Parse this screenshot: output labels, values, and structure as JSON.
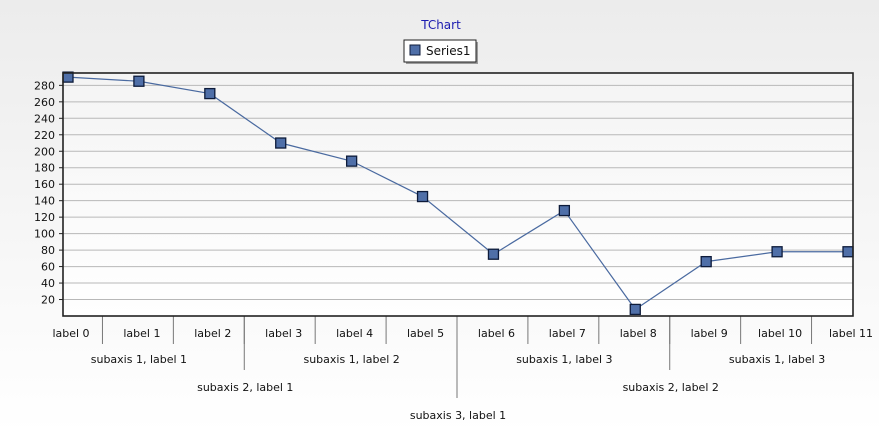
{
  "chart_data": {
    "type": "line",
    "title": "TChart",
    "categories": [
      "label 0",
      "label 1",
      "label 2",
      "label 3",
      "label 4",
      "label 5",
      "label 6",
      "label 7",
      "label 8",
      "label 9",
      "label 10",
      "label 11"
    ],
    "series": [
      {
        "name": "Series1",
        "values": [
          290,
          285,
          270,
          210,
          188,
          145,
          75,
          128,
          8,
          66,
          78,
          78
        ]
      }
    ],
    "ylim": [
      0,
      295
    ],
    "yticks": [
      20,
      40,
      60,
      80,
      100,
      120,
      140,
      160,
      180,
      200,
      220,
      240,
      260,
      280
    ],
    "subaxes": [
      {
        "level": 1,
        "groups": [
          {
            "label": "subaxis 1, label 1",
            "span": [
              0,
              2
            ]
          },
          {
            "label": "subaxis 1, label 2",
            "span": [
              3,
              5
            ]
          },
          {
            "label": "subaxis 1, label 3",
            "span": [
              6,
              8
            ]
          },
          {
            "label": "subaxis 1, label 3",
            "span": [
              9,
              11
            ]
          }
        ]
      },
      {
        "level": 2,
        "groups": [
          {
            "label": "subaxis 2, label 1",
            "span": [
              0,
              5
            ]
          },
          {
            "label": "subaxis 2, label 2",
            "span": [
              6,
              11
            ]
          }
        ]
      },
      {
        "level": 3,
        "groups": [
          {
            "label": "subaxis 3, label 1",
            "span": [
              0,
              11
            ]
          }
        ]
      }
    ],
    "grid": true,
    "legend": "top-center",
    "colors": {
      "series": "#4a6aa0",
      "marker_fill": "#4f6fa8",
      "marker_stroke": "#0d1b3a",
      "title": "#1c1cb0",
      "grid": "#b8b8b8"
    }
  }
}
